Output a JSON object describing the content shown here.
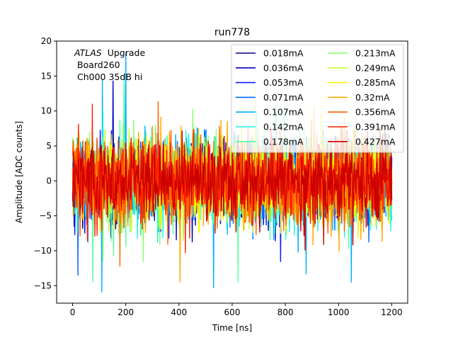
{
  "chart_data": {
    "type": "line",
    "title": "run778",
    "xlabel": "Time [ns]",
    "ylabel": "Amplitude [ADC counts]",
    "xlim": [
      -60,
      1260
    ],
    "ylim": [
      -17.5,
      20
    ],
    "xticks": [
      0,
      200,
      400,
      600,
      800,
      1000,
      1200
    ],
    "yticks": [
      -15,
      -10,
      -5,
      0,
      5,
      10,
      15,
      20
    ],
    "annotation": {
      "italic": "ATLAS",
      "upgrade": "Upgrade",
      "line2": "Board260",
      "line3": "Ch000 35dB hi"
    },
    "legend_location": "upper-right",
    "legend_columns": 2,
    "noise_model": {
      "description": "Each series is a dense noise waveform sampled every 1 ns from 0 to 1200 ns, centered on 0 ADC counts.",
      "sample_step_ns": 1,
      "t_start": 0,
      "t_end": 1200,
      "mean": 0,
      "notable_spikes": [
        {
          "t": 110,
          "y": -15.9,
          "series": "0.107mA"
        },
        {
          "t": 112,
          "y": 14.5,
          "series": "0.107mA"
        },
        {
          "t": 200,
          "y": 18.3,
          "series": "0.107mA"
        },
        {
          "t": 193,
          "y": 14.3,
          "series": "0.178mA"
        },
        {
          "t": 530,
          "y": -15.3,
          "series": "0.107mA"
        },
        {
          "t": 20,
          "y": -13.5,
          "series": "0.071mA"
        }
      ]
    },
    "series": [
      {
        "name": "0.018mA",
        "color": "#00007f",
        "sigma": 2.5
      },
      {
        "name": "0.036mA",
        "color": "#0000c8",
        "sigma": 2.6
      },
      {
        "name": "0.053mA",
        "color": "#0a1aff",
        "sigma": 2.7
      },
      {
        "name": "0.071mA",
        "color": "#0068ff",
        "sigma": 2.8
      },
      {
        "name": "0.107mA",
        "color": "#00b0ff",
        "sigma": 3.0
      },
      {
        "name": "0.142mA",
        "color": "#1cf3e3",
        "sigma": 3.0
      },
      {
        "name": "0.178mA",
        "color": "#58ffa0",
        "sigma": 3.0
      },
      {
        "name": "0.213mA",
        "color": "#87ff70",
        "sigma": 3.0
      },
      {
        "name": "0.249mA",
        "color": "#c6ff30",
        "sigma": 3.1
      },
      {
        "name": "0.285mA",
        "color": "#f8f200",
        "sigma": 3.1
      },
      {
        "name": "0.32mA",
        "color": "#ffa700",
        "sigma": 3.1
      },
      {
        "name": "0.356mA",
        "color": "#ff6300",
        "sigma": 3.1
      },
      {
        "name": "0.391mA",
        "color": "#ff2400",
        "sigma": 3.1
      },
      {
        "name": "0.427mA",
        "color": "#cd0000",
        "sigma": 2.9
      }
    ]
  }
}
